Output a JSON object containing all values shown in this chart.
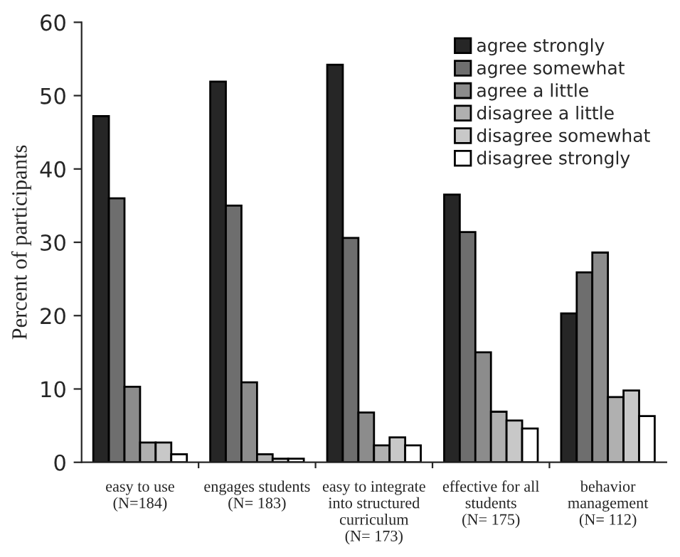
{
  "chart_data": {
    "type": "bar",
    "ylabel": "Percent of participants",
    "categories": [
      "easy to use\n(N=184)",
      "engages students\n(N= 183)",
      "easy to integrate\ninto structured\ncurriculum\n(N= 173)",
      "effective for all\nstudents\n(N= 175)",
      "behavior\nmanagement\n(N= 112)"
    ],
    "series": [
      {
        "name": "agree strongly",
        "color": "#262626",
        "values": [
          47.2,
          51.9,
          54.2,
          36.5,
          20.3
        ]
      },
      {
        "name": "agree somewhat",
        "color": "#6e6e6e",
        "values": [
          36.0,
          35.0,
          30.6,
          31.4,
          25.9
        ]
      },
      {
        "name": "agree a little",
        "color": "#8c8c8c",
        "values": [
          10.3,
          10.9,
          6.8,
          15.0,
          28.6
        ]
      },
      {
        "name": "disagree a little",
        "color": "#b0b0b0",
        "values": [
          2.7,
          1.1,
          2.3,
          6.9,
          8.9
        ]
      },
      {
        "name": "disagree somewhat",
        "color": "#c8c8c8",
        "values": [
          2.7,
          0.5,
          3.4,
          5.7,
          9.8
        ]
      },
      {
        "name": "disagree strongly",
        "color": "#ffffff",
        "values": [
          1.1,
          0.5,
          2.3,
          4.6,
          6.3
        ]
      }
    ],
    "ylim": [
      0,
      60
    ],
    "yticks": [
      0,
      10,
      20,
      30,
      40,
      50,
      60
    ],
    "grid": false,
    "legend": "top right"
  }
}
